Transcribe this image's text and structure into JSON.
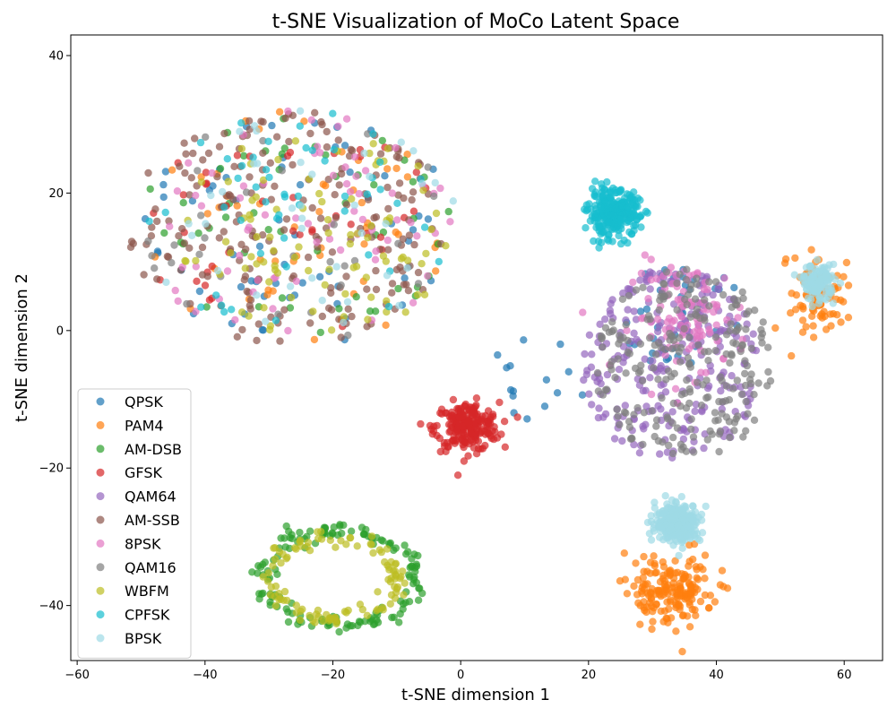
{
  "chart_data": {
    "type": "scatter",
    "title": "t-SNE Visualization of MoCo Latent Space",
    "xlabel": "t-SNE dimension 1",
    "ylabel": "t-SNE dimension 2",
    "xlim": [
      -61,
      66
    ],
    "ylim": [
      -48,
      43
    ],
    "xticks": [
      -60,
      -40,
      -20,
      0,
      20,
      40,
      60
    ],
    "yticks": [
      -40,
      -20,
      0,
      20,
      40
    ],
    "grid": false,
    "legend_position": "lower-left",
    "marker_alpha": 0.7,
    "series": [
      {
        "name": "QPSK",
        "color": "#1f77b4",
        "clusters": [
          {
            "cx": -25,
            "cy": 15,
            "rx": 25,
            "ry": 17,
            "n": 60,
            "shape": "blob"
          },
          {
            "cx": 35,
            "cy": 2,
            "rx": 10,
            "ry": 8,
            "n": 40,
            "shape": "blob"
          },
          {
            "cx": 12,
            "cy": -7,
            "rx": 8,
            "ry": 6,
            "n": 15,
            "shape": "blob"
          }
        ]
      },
      {
        "name": "PAM4",
        "color": "#ff7f0e",
        "clusters": [
          {
            "cx": 33,
            "cy": -38,
            "rx": 7,
            "ry": 5,
            "n": 180,
            "shape": "gauss"
          },
          {
            "cx": 56,
            "cy": 5,
            "rx": 4,
            "ry": 6,
            "n": 80,
            "shape": "gauss"
          },
          {
            "cx": -25,
            "cy": 15,
            "rx": 25,
            "ry": 17,
            "n": 50,
            "shape": "blob"
          }
        ]
      },
      {
        "name": "AM-DSB",
        "color": "#2ca02c",
        "clusters": [
          {
            "cx": -19,
            "cy": -36,
            "rx": 14,
            "ry": 8,
            "n": 150,
            "shape": "ring"
          },
          {
            "cx": -25,
            "cy": 15,
            "rx": 25,
            "ry": 17,
            "n": 50,
            "shape": "blob"
          }
        ]
      },
      {
        "name": "GFSK",
        "color": "#d62728",
        "clusters": [
          {
            "cx": 1,
            "cy": -14,
            "rx": 5,
            "ry": 3.5,
            "n": 220,
            "shape": "gauss"
          },
          {
            "cx": -25,
            "cy": 15,
            "rx": 25,
            "ry": 17,
            "n": 40,
            "shape": "blob"
          }
        ]
      },
      {
        "name": "QAM64",
        "color": "#9467bd",
        "clusters": [
          {
            "cx": 33,
            "cy": -5,
            "rx": 14,
            "ry": 14,
            "n": 260,
            "shape": "blob"
          }
        ]
      },
      {
        "name": "AM-SSB",
        "color": "#8c564b",
        "clusters": [
          {
            "cx": -27,
            "cy": 15,
            "rx": 25,
            "ry": 17,
            "n": 200,
            "shape": "blob"
          }
        ]
      },
      {
        "name": "8PSK",
        "color": "#e377c2",
        "clusters": [
          {
            "cx": -25,
            "cy": 15,
            "rx": 25,
            "ry": 17,
            "n": 70,
            "shape": "blob"
          },
          {
            "cx": 36,
            "cy": 2,
            "rx": 9,
            "ry": 8,
            "n": 100,
            "shape": "gauss"
          }
        ]
      },
      {
        "name": "QAM16",
        "color": "#7f7f7f",
        "clusters": [
          {
            "cx": 35,
            "cy": -5,
            "rx": 14,
            "ry": 14,
            "n": 240,
            "shape": "blob"
          },
          {
            "cx": -25,
            "cy": 15,
            "rx": 25,
            "ry": 17,
            "n": 30,
            "shape": "blob"
          }
        ]
      },
      {
        "name": "WBFM",
        "color": "#bcbd22",
        "clusters": [
          {
            "cx": -20,
            "cy": -36,
            "rx": 12,
            "ry": 7,
            "n": 110,
            "shape": "ring"
          },
          {
            "cx": -22,
            "cy": 14,
            "rx": 22,
            "ry": 15,
            "n": 90,
            "shape": "blob"
          }
        ]
      },
      {
        "name": "CPFSK",
        "color": "#17becf",
        "clusters": [
          {
            "cx": 24,
            "cy": 17,
            "rx": 4,
            "ry": 3.3,
            "n": 280,
            "shape": "gauss"
          },
          {
            "cx": -25,
            "cy": 15,
            "rx": 25,
            "ry": 17,
            "n": 50,
            "shape": "blob"
          }
        ]
      },
      {
        "name": "BPSK",
        "color": "#9edae5",
        "clusters": [
          {
            "cx": 34,
            "cy": -28,
            "rx": 3.5,
            "ry": 2.8,
            "n": 300,
            "shape": "gauss"
          },
          {
            "cx": 56,
            "cy": 7,
            "rx": 2.5,
            "ry": 2.5,
            "n": 120,
            "shape": "gauss"
          },
          {
            "cx": -25,
            "cy": 15,
            "rx": 25,
            "ry": 17,
            "n": 40,
            "shape": "blob"
          }
        ]
      }
    ]
  }
}
